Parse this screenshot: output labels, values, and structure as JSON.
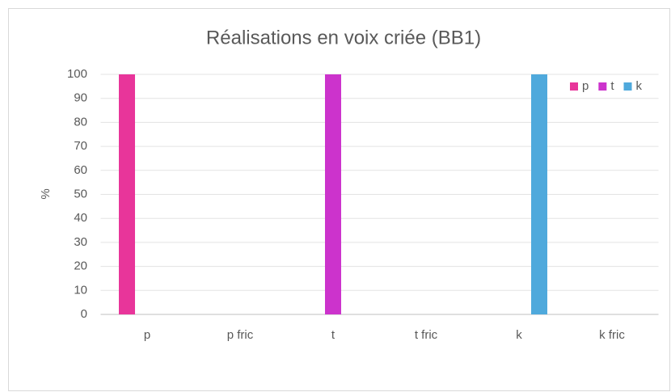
{
  "chart_data": {
    "type": "bar",
    "title": "Réalisations en voix criée (BB1)",
    "y_label": "%",
    "categories": [
      "p",
      "p fric",
      "t",
      "t fric",
      "k",
      "k fric"
    ],
    "series": [
      {
        "name": "p",
        "color": "#e8359a",
        "values": [
          100,
          0,
          0,
          0,
          0,
          0
        ]
      },
      {
        "name": "t",
        "color": "#cc33cc",
        "values": [
          0,
          0,
          100,
          0,
          0,
          0
        ]
      },
      {
        "name": "k",
        "color": "#4fa9dc",
        "values": [
          0,
          0,
          0,
          0,
          100,
          0
        ]
      }
    ],
    "ylim": [
      0,
      100
    ],
    "yticks": [
      0,
      10,
      20,
      30,
      40,
      50,
      60,
      70,
      80,
      90,
      100
    ],
    "grid": true,
    "legend": "top-right"
  }
}
